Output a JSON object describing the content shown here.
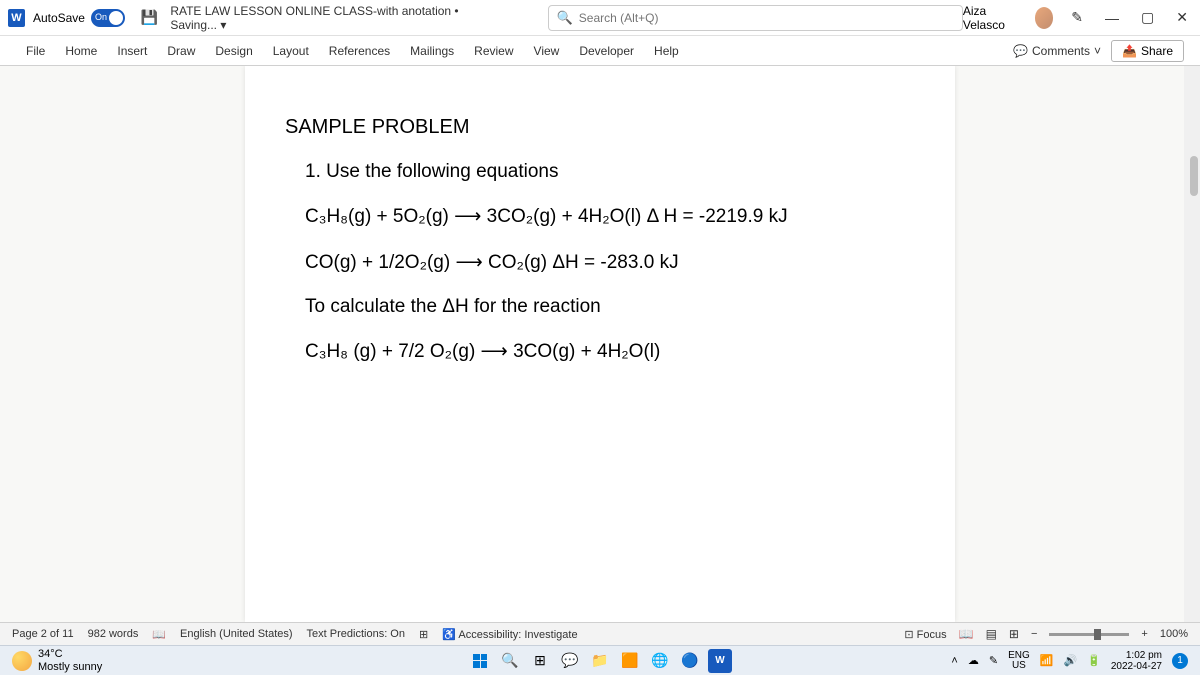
{
  "titleBar": {
    "autosaveLabel": "AutoSave",
    "autosaveState": "On",
    "docTitle": "RATE LAW LESSON ONLINE CLASS-with anotation • Saving... ▾",
    "searchPlaceholder": "Search (Alt+Q)",
    "userName": "Aiza Velasco"
  },
  "ribbon": {
    "tabs": [
      "File",
      "Home",
      "Insert",
      "Draw",
      "Design",
      "Layout",
      "References",
      "Mailings",
      "Review",
      "View",
      "Developer",
      "Help"
    ],
    "comments": "Comments",
    "share": "Share"
  },
  "document": {
    "heading": "SAMPLE PROBLEM",
    "line1": "1. Use the following equations",
    "eq1_left": "C₃H₈(g)  +  5O₂(g)",
    "eq1_right": "3CO₂(g) + 4H₂O(l)  Δ H =  -2219.9 kJ",
    "eq2_left": "CO(g)  +  1/2O₂(g)",
    "eq2_right": "CO₂(g)            ΔH = -283.0 kJ",
    "line2": "To calculate the   ΔH for the reaction",
    "eq3_left": "C₃H₈ (g)   +    7/2 O₂(g)",
    "eq3_right": "3CO(g)  +  4H₂O(l)"
  },
  "statusBar": {
    "page": "Page 2 of 11",
    "words": "982 words",
    "lang": "English (United States)",
    "predictions": "Text Predictions: On",
    "accessibility": "Accessibility: Investigate",
    "focus": "Focus",
    "zoom": "100%"
  },
  "taskbar": {
    "temp": "34°C",
    "weather": "Mostly sunny",
    "langTop": "ENG",
    "langBot": "US",
    "time": "1:02 pm",
    "date": "2022-04-27",
    "notif": "1"
  }
}
